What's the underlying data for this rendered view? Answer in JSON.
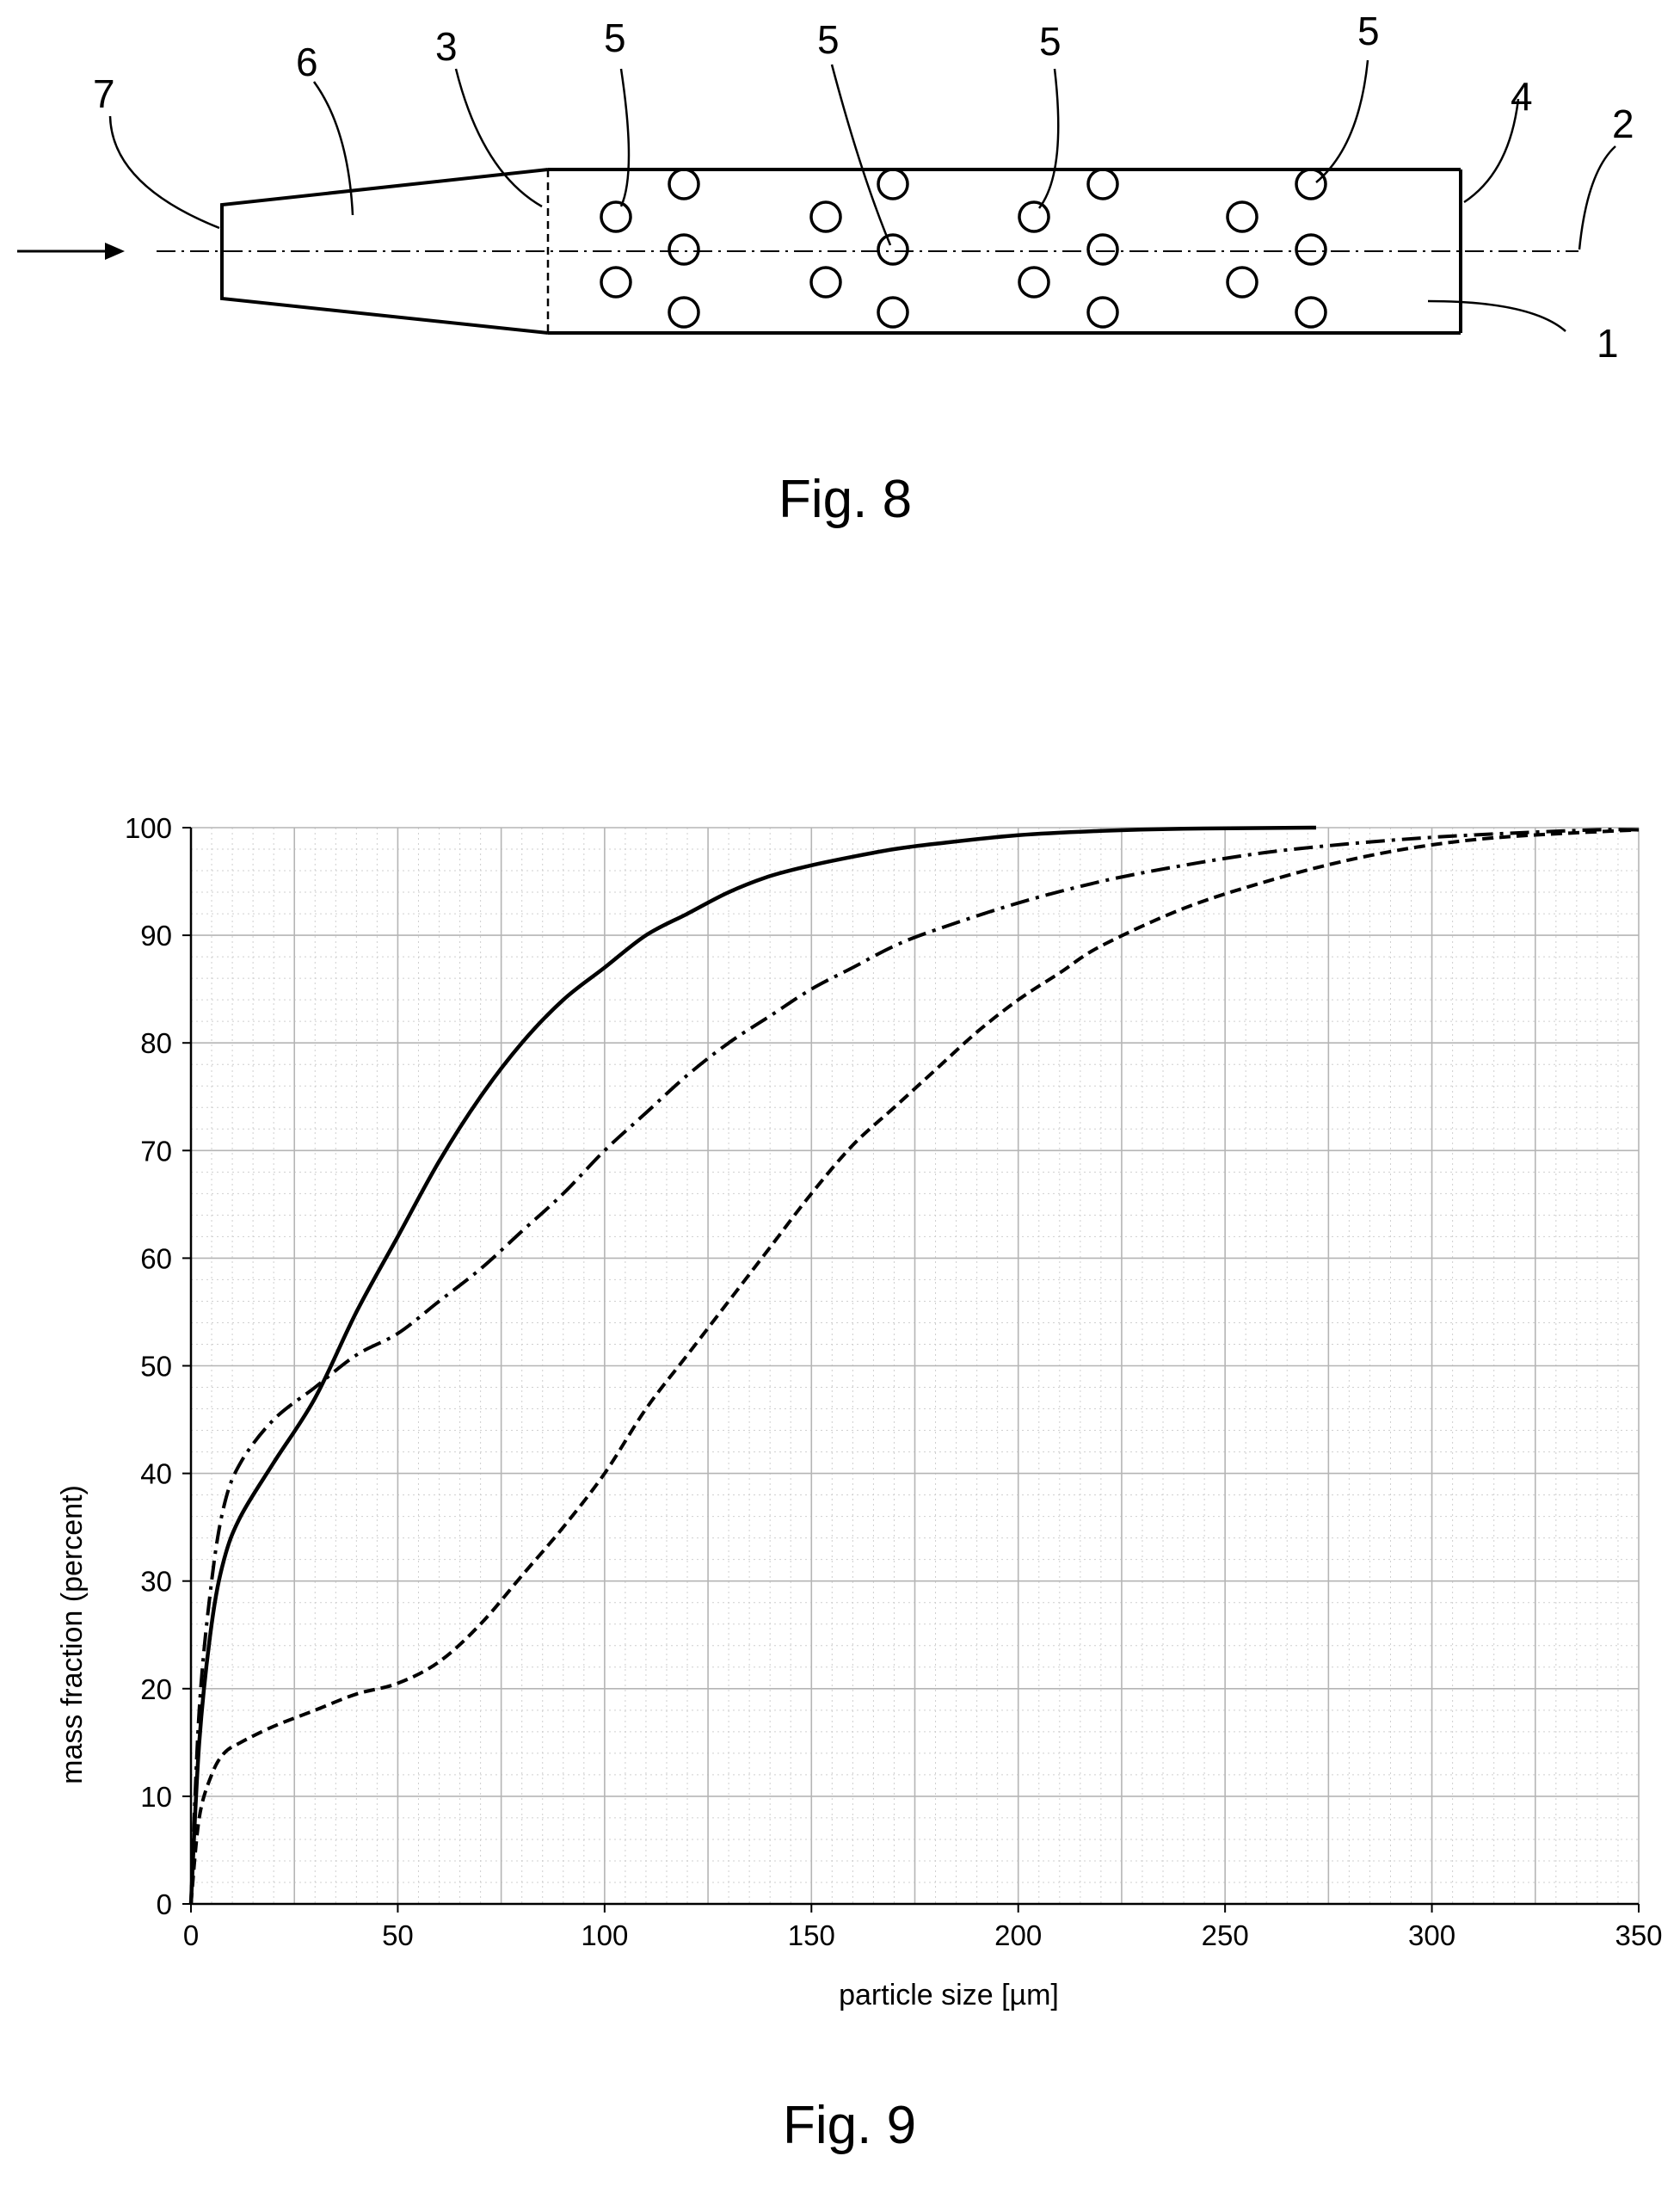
{
  "figure8": {
    "caption": "Fig. 8",
    "reference_numerals": {
      "n1": "1",
      "n2": "2",
      "n3": "3",
      "n4": "4",
      "n5a": "5",
      "n5b": "5",
      "n5c": "5",
      "n5d": "5",
      "n6": "6",
      "n7": "7"
    }
  },
  "figure9": {
    "caption": "Fig. 9"
  },
  "chart_data": {
    "type": "line",
    "title": "",
    "xlabel": "particle size [µm]",
    "ylabel": "mass fraction (percent)",
    "xlim": [
      0,
      350
    ],
    "ylim": [
      0,
      100
    ],
    "xticks": [
      "0",
      "50",
      "100",
      "150",
      "200",
      "250",
      "300",
      "350"
    ],
    "yticks": [
      "0",
      "10",
      "20",
      "30",
      "40",
      "50",
      "60",
      "70",
      "80",
      "90",
      "100"
    ],
    "grid": true,
    "legend": "none",
    "series": [
      {
        "style": "solid",
        "x": [
          0,
          2,
          5,
          8,
          12,
          20,
          30,
          40,
          50,
          60,
          70,
          80,
          90,
          100,
          110,
          120,
          130,
          140,
          150,
          160,
          170,
          180,
          200,
          220,
          240,
          272
        ],
        "y": [
          0,
          15,
          26,
          32,
          36,
          41,
          47,
          55,
          62,
          69,
          75,
          80,
          84,
          87,
          90,
          92,
          94,
          95.5,
          96.5,
          97.3,
          98,
          98.5,
          99.3,
          99.7,
          99.9,
          100
        ]
      },
      {
        "style": "dash-dot",
        "x": [
          0,
          2,
          5,
          8,
          12,
          20,
          30,
          40,
          50,
          60,
          70,
          80,
          90,
          100,
          110,
          120,
          130,
          140,
          150,
          160,
          170,
          180,
          200,
          220,
          240,
          260,
          280,
          300,
          320,
          340,
          350
        ],
        "y": [
          0,
          18,
          30,
          37,
          41,
          45,
          48,
          51,
          53,
          56,
          59,
          62.5,
          66,
          70,
          73.5,
          77,
          80,
          82.5,
          85,
          87,
          89,
          90.5,
          93,
          95,
          96.5,
          97.7,
          98.5,
          99.1,
          99.5,
          99.8,
          99.8
        ]
      },
      {
        "style": "dashed",
        "x": [
          0,
          2,
          5,
          8,
          12,
          20,
          30,
          40,
          50,
          60,
          70,
          80,
          90,
          100,
          110,
          120,
          130,
          140,
          150,
          160,
          170,
          180,
          190,
          200,
          210,
          220,
          240,
          260,
          280,
          300,
          320,
          350
        ],
        "y": [
          0,
          8,
          12,
          14,
          15,
          16.5,
          18,
          19.5,
          20.5,
          22.5,
          26,
          30.5,
          35,
          40,
          46,
          51,
          56,
          61,
          66,
          70.5,
          74,
          77.5,
          81,
          84,
          86.5,
          89,
          92.5,
          95,
          97,
          98.4,
          99.2,
          99.8
        ]
      }
    ]
  }
}
